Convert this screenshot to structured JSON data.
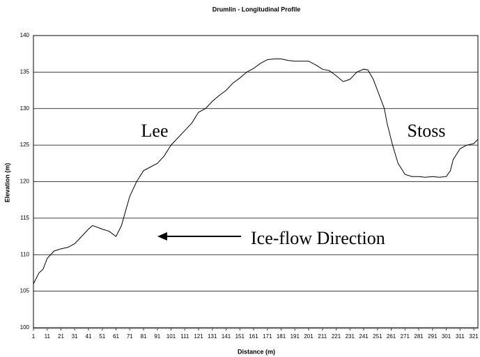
{
  "chart_data": {
    "type": "line",
    "title": "Drumlin - Longitudinal Profile",
    "x_label": "Distance (m)",
    "y_label": "Elevation (m)",
    "annotations": [
      "Lee",
      "Stoss",
      "Ice-flow Direction"
    ],
    "x": [
      1,
      5,
      8,
      11,
      16,
      21,
      26,
      31,
      36,
      41,
      44,
      51,
      56,
      61,
      65,
      68,
      71,
      76,
      81,
      86,
      91,
      96,
      101,
      106,
      111,
      116,
      121,
      126,
      131,
      136,
      141,
      146,
      151,
      156,
      161,
      166,
      171,
      176,
      181,
      186,
      191,
      196,
      201,
      206,
      211,
      216,
      221,
      226,
      231,
      236,
      241,
      244,
      248,
      252,
      256,
      258,
      262,
      266,
      271,
      276,
      281,
      286,
      291,
      296,
      301,
      304,
      306,
      311,
      316,
      321,
      324
    ],
    "series": [
      {
        "name": "Elevation",
        "color": "#000000",
        "values": [
          106,
          107.5,
          108,
          109.5,
          110.5,
          110.8,
          111,
          111.5,
          112.5,
          113.5,
          114,
          113.5,
          113.2,
          112.5,
          114,
          116,
          118,
          120,
          121.5,
          122,
          122.5,
          123.5,
          125,
          126,
          127,
          128,
          129.5,
          130,
          131,
          131.8,
          132.5,
          133.5,
          134.2,
          135,
          135.5,
          136.2,
          136.7,
          136.8,
          136.8,
          136.6,
          136.5,
          136.5,
          136.5,
          136,
          135.4,
          135.2,
          134.5,
          133.7,
          134,
          135,
          135.4,
          135.3,
          134,
          132,
          130,
          128,
          125,
          122.5,
          121,
          120.7,
          120.7,
          120.6,
          120.7,
          120.6,
          120.7,
          121.5,
          123,
          124.5,
          125,
          125.2,
          125.8
        ]
      }
    ],
    "xlim": [
      1,
      324
    ],
    "ylim": [
      100,
      140
    ],
    "xticks": [
      1,
      11,
      21,
      31,
      41,
      51,
      61,
      71,
      81,
      91,
      101,
      111,
      121,
      131,
      141,
      151,
      161,
      171,
      181,
      191,
      201,
      211,
      221,
      231,
      241,
      251,
      261,
      271,
      281,
      291,
      301,
      311,
      321
    ],
    "yticks": [
      100,
      105,
      110,
      115,
      120,
      125,
      130,
      135,
      140
    ],
    "grid": true
  }
}
